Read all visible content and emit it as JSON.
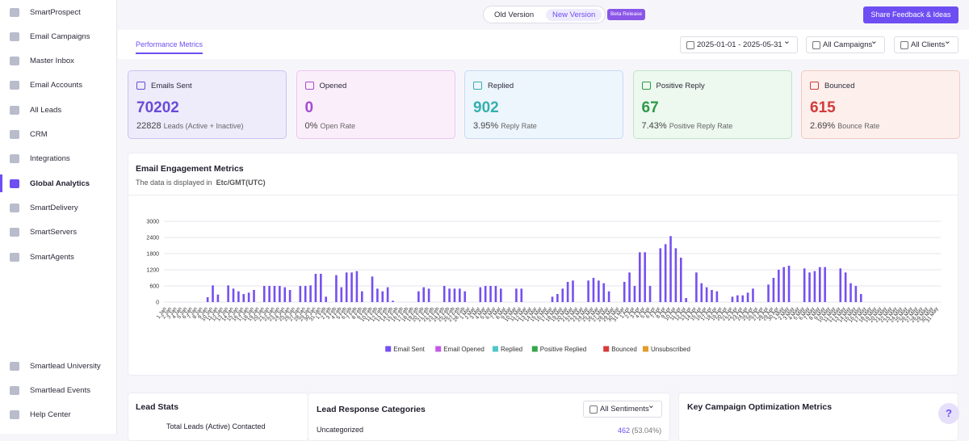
{
  "sidebar": {
    "nav": [
      "SmartProspect",
      "Email Campaigns",
      "Master Inbox",
      "Email Accounts",
      "All Leads",
      "CRM",
      "Integrations",
      "Global Analytics",
      "SmartDelivery",
      "SmartServers",
      "SmartAgents"
    ],
    "active": "Global Analytics",
    "footer": [
      "Smartlead University",
      "Smartlead Events",
      "Help Center"
    ]
  },
  "topbar": {
    "old_version": "Old Version",
    "new_version": "New Version",
    "badge": "Beta Release",
    "feedback_button": "Share Feedback & Ideas"
  },
  "tab": "Performance Metrics",
  "filters": {
    "date_range": "2025-01-01 - 2025-05-31",
    "campaigns": "All Campaigns",
    "clients": "All Clients"
  },
  "cards": [
    {
      "label": "Emails Sent",
      "value": "70202",
      "sub_value": "22828",
      "sub_label": "Leads (Active + Inactive)"
    },
    {
      "label": "Opened",
      "value": "0",
      "sub_value": "0%",
      "sub_label": "Open Rate"
    },
    {
      "label": "Replied",
      "value": "902",
      "sub_value": "3.95%",
      "sub_label": "Reply Rate"
    },
    {
      "label": "Positive Reply",
      "value": "67",
      "sub_value": "7.43%",
      "sub_label": "Positive Reply Rate"
    },
    {
      "label": "Bounced",
      "value": "615",
      "sub_value": "2.69%",
      "sub_label": "Bounce Rate"
    }
  ],
  "engagement": {
    "title": "Email Engagement Metrics",
    "subtitle": "The data is displayed in",
    "timezone": "Etc/GMT(UTC)"
  },
  "chart_data": {
    "type": "bar",
    "categories": [
      "1 Jan",
      "2 Jan",
      "3 Jan",
      "4 Jan",
      "5 Jan",
      "6 Jan",
      "7 Jan",
      "8 Jan",
      "9 Jan",
      "10 Jan",
      "11 Jan",
      "12 Jan",
      "13 Jan",
      "14 Jan",
      "15 Jan",
      "16 Jan",
      "17 Jan",
      "18 Jan",
      "19 Jan",
      "20 Jan",
      "21 Jan",
      "22 Jan",
      "23 Jan",
      "24 Jan",
      "25 Jan",
      "26 Jan",
      "27 Jan",
      "28 Jan",
      "29 Jan",
      "30 Jan",
      "31 Jan",
      "1 Feb",
      "2 Feb",
      "3 Feb",
      "4 Feb",
      "5 Feb",
      "6 Feb",
      "7 Feb",
      "8 Feb",
      "9 Feb",
      "10 Feb",
      "11 Feb",
      "12 Feb",
      "13 Feb",
      "14 Feb",
      "15 Feb",
      "16 Feb",
      "17 Feb",
      "18 Feb",
      "19 Feb",
      "20 Feb",
      "21 Feb",
      "22 Feb",
      "23 Feb",
      "24 Feb",
      "25 Feb",
      "26 Feb",
      "27 Feb",
      "28 Feb",
      "1 Mar",
      "2 Mar",
      "3 Mar",
      "4 Mar",
      "5 Mar",
      "6 Mar",
      "7 Mar",
      "8 Mar",
      "9 Mar",
      "10 Mar",
      "11 Mar",
      "12 Mar",
      "13 Mar",
      "14 Mar",
      "15 Mar",
      "16 Mar",
      "17 Mar",
      "18 Mar",
      "19 Mar",
      "20 Mar",
      "21 Mar",
      "22 Mar",
      "23 Mar",
      "24 Mar",
      "25 Mar",
      "26 Mar",
      "27 Mar",
      "28 Mar",
      "29 Mar",
      "30 Mar",
      "31 Mar",
      "1 Apr",
      "2 Apr",
      "3 Apr",
      "4 Apr",
      "5 Apr",
      "6 Apr",
      "7 Apr",
      "8 Apr",
      "9 Apr",
      "10 Apr",
      "11 Apr",
      "12 Apr",
      "13 Apr",
      "14 Apr",
      "15 Apr",
      "16 Apr",
      "17 Apr",
      "18 Apr",
      "19 Apr",
      "20 Apr",
      "21 Apr",
      "22 Apr",
      "23 Apr",
      "24 Apr",
      "25 Apr",
      "26 Apr",
      "27 Apr",
      "28 Apr",
      "29 Apr",
      "30 Apr",
      "1 May",
      "2 May",
      "3 May",
      "4 May",
      "5 May",
      "6 May",
      "7 May",
      "8 May",
      "9 May",
      "10 May",
      "11 May",
      "12 May",
      "13 May",
      "14 May",
      "15 May",
      "16 May",
      "17 May",
      "18 May",
      "19 May",
      "20 May",
      "21 May",
      "22 May",
      "23 May",
      "24 May",
      "25 May",
      "26 May",
      "27 May",
      "28 May",
      "29 May",
      "30 May",
      "31 May"
    ],
    "series": [
      {
        "name": "Email Sent",
        "color": "#7650f0",
        "values": [
          0,
          0,
          0,
          0,
          0,
          0,
          0,
          0,
          180,
          620,
          280,
          0,
          620,
          500,
          400,
          300,
          350,
          450,
          0,
          600,
          600,
          600,
          600,
          550,
          450,
          0,
          600,
          600,
          620,
          1050,
          1050,
          200,
          0,
          1000,
          550,
          1100,
          1100,
          1150,
          400,
          0,
          950,
          500,
          400,
          550,
          50,
          0,
          0,
          0,
          0,
          400,
          550,
          500,
          0,
          0,
          600,
          500,
          500,
          500,
          400,
          0,
          0,
          550,
          600,
          600,
          600,
          500,
          0,
          0,
          500,
          500,
          0,
          0,
          0,
          0,
          0,
          200,
          300,
          500,
          750,
          800,
          0,
          0,
          800,
          900,
          800,
          700,
          400,
          0,
          0,
          750,
          1100,
          600,
          1850,
          1850,
          600,
          0,
          2000,
          2150,
          2450,
          2000,
          1650,
          150,
          0,
          1100,
          700,
          550,
          450,
          400,
          0,
          0,
          200,
          250,
          250,
          350,
          500,
          0,
          0,
          650,
          900,
          1200,
          1300,
          1350,
          0,
          0,
          1250,
          1100,
          1150,
          1300,
          1300,
          0,
          0,
          1250,
          1100,
          700,
          600,
          300,
          0,
          0,
          0,
          0,
          0,
          0,
          0,
          0,
          0,
          0,
          0,
          0,
          0,
          0,
          0
        ]
      },
      {
        "name": "Email Opened",
        "color": "#c559e6"
      },
      {
        "name": "Replied",
        "color": "#4fc6c9"
      },
      {
        "name": "Positive Replied",
        "color": "#35a64a"
      },
      {
        "name": "Bounced",
        "color": "#d83a3a"
      },
      {
        "name": "Unsubscribed",
        "color": "#e39b2c"
      }
    ],
    "ylim": [
      0,
      3000
    ],
    "yticks": [
      0,
      600,
      1200,
      1800,
      2400,
      3000
    ],
    "grid": true,
    "legend": "bottom"
  },
  "lead_stats": {
    "title": "Lead Stats",
    "row": "Total Leads (Active) Contacted"
  },
  "lead_response": {
    "title": "Lead Response Categories",
    "filter": "All Sentiments",
    "row_label": "Uncategorized",
    "row_value": "462",
    "row_percent": "(53.04%)"
  },
  "optimization": {
    "title": "Key Campaign Optimization Metrics"
  },
  "help": "?"
}
